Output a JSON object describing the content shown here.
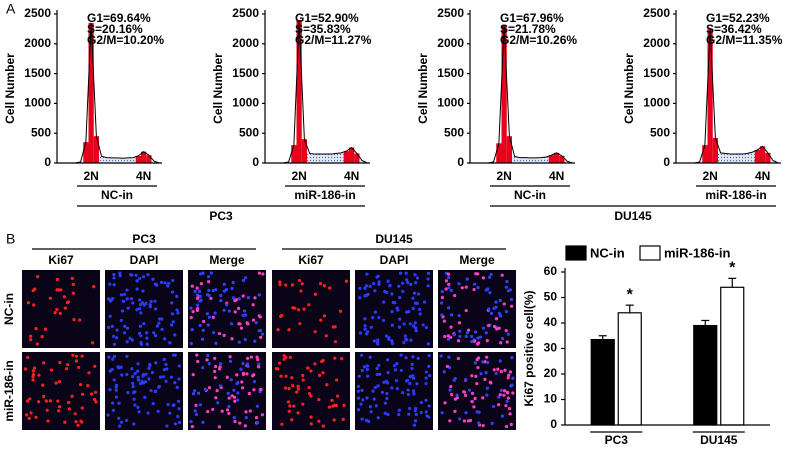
{
  "panel_labels": [
    "A",
    "B"
  ],
  "histogram_groups": [
    {
      "label": "PC3",
      "conditions": [
        "NC-in",
        "miR-186-in"
      ]
    },
    {
      "label": "DU145",
      "conditions": [
        "NC-in",
        "miR-186-in"
      ]
    }
  ],
  "chart_data": [
    {
      "type": "histogram",
      "ylabel": "Cell Number",
      "annotation": [
        "G1=69.64%",
        "S=20.16%",
        "G2/M=10.20%"
      ],
      "categories": [
        null,
        null,
        null,
        null,
        null,
        null,
        "2N",
        null,
        null,
        null,
        null,
        null,
        null,
        null,
        null,
        null,
        "4N",
        null,
        null,
        null
      ],
      "values": [
        0,
        0,
        0,
        0,
        20,
        350,
        2350,
        450,
        110,
        90,
        85,
        85,
        80,
        85,
        90,
        120,
        190,
        130,
        30,
        0
      ],
      "ylim": [
        0,
        2500
      ],
      "yticks": [
        0,
        500,
        1000,
        1500,
        2000,
        2500
      ]
    },
    {
      "type": "histogram",
      "ylabel": "Cell Number",
      "annotation": [
        "G1=52.90%",
        "S=35.83%",
        "G2/M=11.27%"
      ],
      "categories": [
        null,
        null,
        null,
        null,
        null,
        null,
        "2N",
        null,
        null,
        null,
        null,
        null,
        null,
        null,
        null,
        null,
        "4N",
        null,
        null,
        null
      ],
      "values": [
        0,
        0,
        0,
        0,
        20,
        300,
        2400,
        400,
        160,
        150,
        150,
        150,
        150,
        160,
        170,
        200,
        260,
        160,
        40,
        0
      ],
      "ylim": [
        0,
        2500
      ],
      "yticks": [
        0,
        500,
        1000,
        1500,
        2000,
        2500
      ]
    },
    {
      "type": "histogram",
      "ylabel": "Cell Number",
      "annotation": [
        "G1=67.96%",
        "S=21.78%",
        "G2/M=10.26%"
      ],
      "categories": [
        null,
        null,
        null,
        null,
        null,
        null,
        "2N",
        null,
        null,
        null,
        null,
        null,
        null,
        null,
        null,
        null,
        "4N",
        null,
        null,
        null
      ],
      "values": [
        0,
        0,
        0,
        0,
        20,
        330,
        2300,
        450,
        110,
        90,
        90,
        85,
        85,
        90,
        100,
        130,
        170,
        120,
        30,
        0
      ],
      "ylim": [
        0,
        2500
      ],
      "yticks": [
        0,
        500,
        1000,
        1500,
        2000,
        2500
      ]
    },
    {
      "type": "histogram",
      "ylabel": "Cell Number",
      "annotation": [
        "G1=52.23%",
        "S=36.42%",
        "G2/M=11.35%"
      ],
      "categories": [
        null,
        null,
        null,
        null,
        null,
        null,
        "2N",
        null,
        null,
        null,
        null,
        null,
        null,
        null,
        null,
        null,
        "4N",
        null,
        null,
        null
      ],
      "values": [
        0,
        0,
        0,
        0,
        20,
        300,
        2250,
        420,
        170,
        160,
        150,
        150,
        150,
        160,
        180,
        220,
        280,
        170,
        40,
        0
      ],
      "ylim": [
        0,
        2500
      ],
      "yticks": [
        0,
        500,
        1000,
        1500,
        2000,
        2500
      ]
    },
    {
      "type": "bar",
      "ylabel": "Ki67 positive cell(%)",
      "categories": [
        "PC3",
        "DU145"
      ],
      "series": [
        {
          "name": "NC-in",
          "color": "#000000",
          "values": [
            33.5,
            39
          ],
          "errors": [
            1.5,
            2
          ]
        },
        {
          "name": "miR-186-in",
          "color": "#ffffff",
          "values": [
            44,
            54
          ],
          "errors": [
            3,
            3.5
          ],
          "annotations": [
            "*",
            "*"
          ]
        }
      ],
      "ylim": [
        0,
        60
      ],
      "yticks": [
        0,
        10,
        20,
        30,
        40,
        50,
        60
      ]
    }
  ],
  "microscopy": {
    "groups": [
      "PC3",
      "DU145"
    ],
    "columns": [
      "Ki67",
      "DAPI",
      "Merge",
      "Ki67",
      "DAPI",
      "Merge"
    ],
    "rows": [
      "NC-in",
      "miR-186-in"
    ]
  }
}
